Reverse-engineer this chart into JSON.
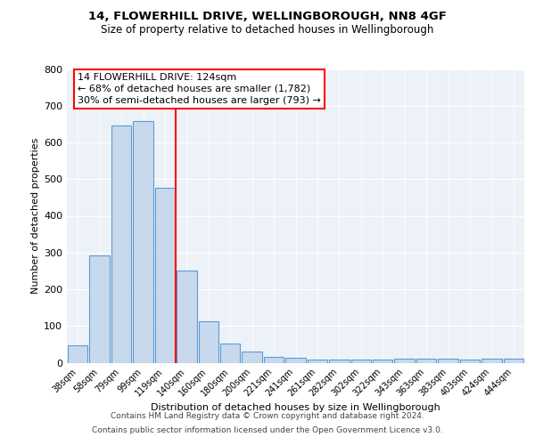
{
  "title1": "14, FLOWERHILL DRIVE, WELLINGBOROUGH, NN8 4GF",
  "title2": "Size of property relative to detached houses in Wellingborough",
  "xlabel": "Distribution of detached houses by size in Wellingborough",
  "ylabel": "Number of detached properties",
  "bar_labels": [
    "38sqm",
    "58sqm",
    "79sqm",
    "99sqm",
    "119sqm",
    "140sqm",
    "160sqm",
    "180sqm",
    "200sqm",
    "221sqm",
    "241sqm",
    "261sqm",
    "282sqm",
    "302sqm",
    "322sqm",
    "343sqm",
    "363sqm",
    "383sqm",
    "403sqm",
    "424sqm",
    "444sqm"
  ],
  "bar_values": [
    48,
    293,
    645,
    658,
    477,
    252,
    113,
    52,
    30,
    15,
    13,
    8,
    8,
    8,
    8,
    10,
    10,
    10,
    8,
    10,
    10
  ],
  "bar_color": "#c9d9ed",
  "bar_edgecolor": "#5b9bd5",
  "redline_x": 4.5,
  "annotation_line1": "14 FLOWERHILL DRIVE: 124sqm",
  "annotation_line2": "← 68% of detached houses are smaller (1,782)",
  "annotation_line3": "30% of semi-detached houses are larger (793) →",
  "ylim": [
    0,
    800
  ],
  "yticks": [
    0,
    100,
    200,
    300,
    400,
    500,
    600,
    700,
    800
  ],
  "footer_line1": "Contains HM Land Registry data © Crown copyright and database right 2024.",
  "footer_line2": "Contains public sector information licensed under the Open Government Licence v3.0.",
  "background_color": "#edf2f9",
  "grid_color": "#ffffff",
  "title1_fontsize": 9.5,
  "title2_fontsize": 8.5,
  "bar_fontsize": 7,
  "ylabel_fontsize": 8,
  "xlabel_fontsize": 8,
  "annotation_fontsize": 8,
  "footer_fontsize": 6.5
}
